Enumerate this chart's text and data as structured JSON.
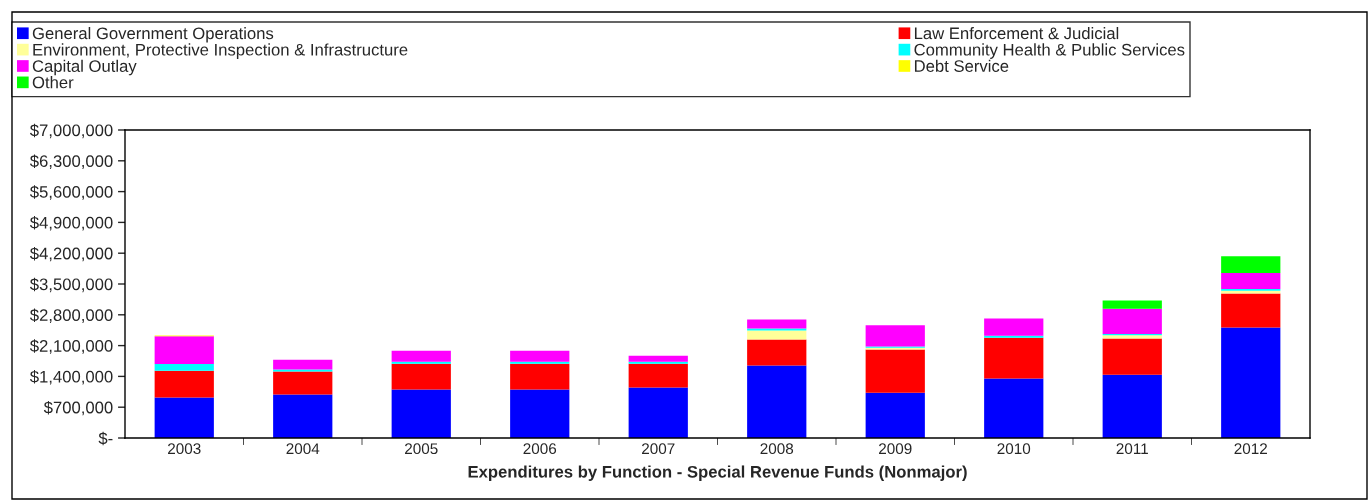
{
  "chart_data": {
    "type": "bar",
    "stacked": true,
    "xlabel": "Expenditures by Function - Special Revenue Funds (Nonmajor)",
    "categories": [
      "2003",
      "2004",
      "2005",
      "2006",
      "2007",
      "2008",
      "2009",
      "2010",
      "2011",
      "2012"
    ],
    "series": [
      {
        "name": "General Government Operations",
        "color": "#0000ff",
        "values": [
          920000,
          990000,
          1100000,
          1100000,
          1150000,
          1650000,
          1030000,
          1350000,
          1440000,
          2510000
        ]
      },
      {
        "name": "Law Enforcement & Judicial",
        "color": "#ff0000",
        "values": [
          610000,
          520000,
          590000,
          590000,
          540000,
          590000,
          980000,
          930000,
          820000,
          775000
        ]
      },
      {
        "name": "Environment, Protective Inspection & Infrastructure",
        "color": "#ffff99",
        "values": [
          0,
          0,
          0,
          0,
          0,
          205000,
          40000,
          0,
          75000,
          60000
        ]
      },
      {
        "name": "Community Health & Public Services",
        "color": "#00ffff",
        "values": [
          150000,
          45000,
          45000,
          45000,
          45000,
          45000,
          30000,
          45000,
          30000,
          40000
        ]
      },
      {
        "name": "Capital Outlay",
        "color": "#ff00ff",
        "values": [
          630000,
          225000,
          250000,
          250000,
          135000,
          205000,
          480000,
          390000,
          570000,
          365000
        ]
      },
      {
        "name": "Debt Service",
        "color": "#ffff00",
        "values": [
          20000,
          0,
          0,
          0,
          0,
          0,
          0,
          0,
          0,
          0
        ]
      },
      {
        "name": "Other",
        "color": "#00ff00",
        "values": [
          0,
          0,
          0,
          0,
          0,
          0,
          0,
          0,
          190000,
          380000
        ]
      }
    ],
    "ylim": [
      0,
      7000000
    ],
    "yticks": [
      {
        "value": 0,
        "label": "$-"
      },
      {
        "value": 700000,
        "label": "$700,000"
      },
      {
        "value": 1400000,
        "label": "$1,400,000"
      },
      {
        "value": 2100000,
        "label": "$2,100,000"
      },
      {
        "value": 2800000,
        "label": "$2,800,000"
      },
      {
        "value": 3500000,
        "label": "$3,500,000"
      },
      {
        "value": 4200000,
        "label": "$4,200,000"
      },
      {
        "value": 4900000,
        "label": "$4,900,000"
      },
      {
        "value": 5600000,
        "label": "$5,600,000"
      },
      {
        "value": 6300000,
        "label": "$6,300,000"
      },
      {
        "value": 7000000,
        "label": "$7,000,000"
      }
    ],
    "legend": "top",
    "grid": false
  }
}
